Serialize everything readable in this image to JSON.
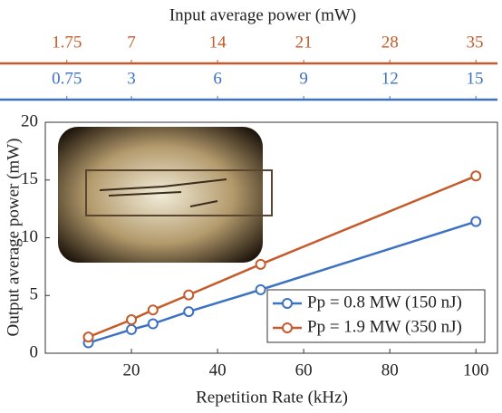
{
  "chart_data": {
    "type": "line",
    "title": "Input average power (mW)",
    "x_label": "Repetition Rate (kHz)",
    "y_label": "Output average power (mW)",
    "x": [
      10,
      20,
      25,
      33.3,
      50,
      100
    ],
    "series": [
      {
        "name": "Pp = 0.8 MW (150 nJ)",
        "color": "#3d72c0",
        "values": [
          0.9,
          2.05,
          2.55,
          3.6,
          5.5,
          11.4
        ]
      },
      {
        "name": "Pp = 1.9 MW (350 nJ)",
        "color": "#c55a2a",
        "values": [
          1.4,
          2.9,
          3.75,
          5.05,
          7.7,
          15.35
        ]
      }
    ],
    "xlim": [
      0,
      105
    ],
    "xticks": [
      20,
      40,
      60,
      80,
      100
    ],
    "ylim": [
      0,
      20
    ],
    "yticks": [
      0,
      5,
      10,
      15,
      20
    ],
    "legend": "lower-right",
    "top_axes": [
      {
        "color": "#c55a2a",
        "xlim": [
          0,
          36.75
        ],
        "xticks": [
          1.75,
          7,
          14,
          21,
          28,
          35
        ]
      },
      {
        "color": "#3d72c0",
        "xlim": [
          0,
          15.75
        ],
        "xticks": [
          0.75,
          3,
          6,
          9,
          12,
          15
        ]
      }
    ]
  }
}
